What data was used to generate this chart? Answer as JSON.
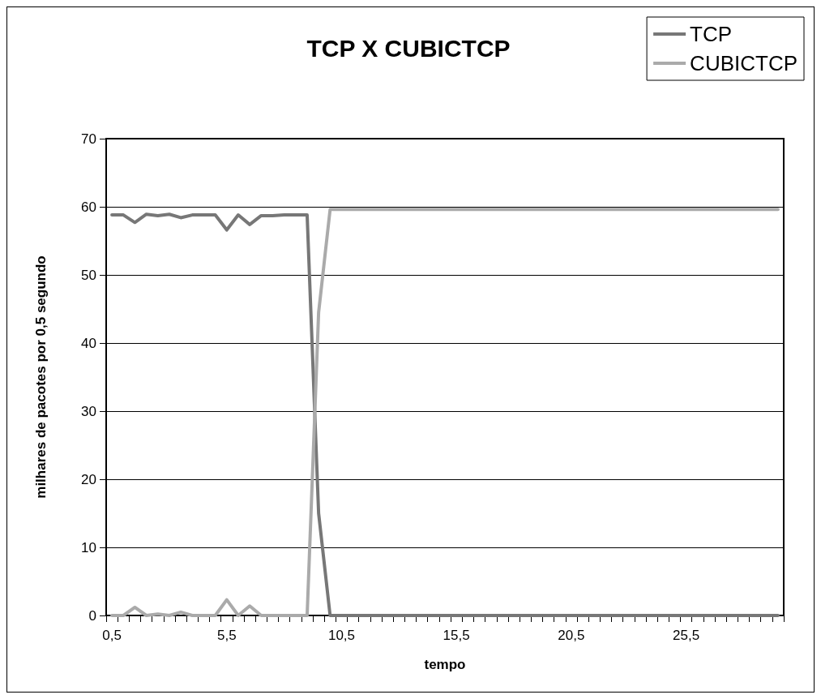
{
  "chart_data": {
    "type": "line",
    "title": "TCP X CUBICTCP",
    "xlabel": "tempo",
    "ylabel": "milhares de pacotes por 0,5 segundo",
    "categories": [
      "0,5",
      null,
      null,
      null,
      null,
      null,
      null,
      null,
      null,
      null,
      "5,5",
      null,
      null,
      null,
      null,
      null,
      null,
      null,
      null,
      null,
      "10,5",
      null,
      null,
      null,
      null,
      null,
      null,
      null,
      null,
      null,
      "15,5",
      null,
      null,
      null,
      null,
      null,
      null,
      null,
      null,
      null,
      "20,5",
      null,
      null,
      null,
      null,
      null,
      null,
      null,
      null,
      null,
      "25,5",
      null,
      null,
      null,
      null,
      null,
      null,
      null,
      null
    ],
    "series": [
      {
        "name": "TCP",
        "color": "#777777",
        "values": [
          58.8,
          58.8,
          57.7,
          58.9,
          58.7,
          58.9,
          58.4,
          58.8,
          58.8,
          58.8,
          56.6,
          58.8,
          57.4,
          58.7,
          58.7,
          58.8,
          58.8,
          58.8,
          15,
          0,
          0,
          0,
          0,
          0,
          0,
          0,
          0,
          0,
          0,
          0,
          0,
          0,
          0,
          0,
          0,
          0,
          0,
          0,
          0,
          0,
          0,
          0,
          0,
          0,
          0,
          0,
          0,
          0,
          0,
          0,
          0,
          0,
          0,
          0,
          0,
          0,
          0,
          0,
          0
        ]
      },
      {
        "name": "CUBICTCP",
        "color": "#aaaaaa",
        "values": [
          0,
          0,
          1.2,
          0,
          0.2,
          0,
          0.5,
          0,
          0,
          0,
          2.3,
          0,
          1.4,
          0,
          0,
          0,
          0,
          0,
          44.5,
          59.6,
          59.6,
          59.6,
          59.6,
          59.6,
          59.6,
          59.6,
          59.6,
          59.6,
          59.6,
          59.6,
          59.6,
          59.6,
          59.6,
          59.6,
          59.6,
          59.6,
          59.6,
          59.6,
          59.6,
          59.6,
          59.6,
          59.6,
          59.6,
          59.6,
          59.6,
          59.6,
          59.6,
          59.6,
          59.6,
          59.6,
          59.6,
          59.6,
          59.6,
          59.6,
          59.6,
          59.6,
          59.6,
          59.6,
          59.6
        ]
      }
    ],
    "ylim": [
      0,
      70
    ],
    "yticks": [
      0,
      10,
      20,
      30,
      40,
      50,
      60,
      70
    ],
    "grid": "y",
    "legend": "top right",
    "marker": "none",
    "line_style": "solid"
  }
}
